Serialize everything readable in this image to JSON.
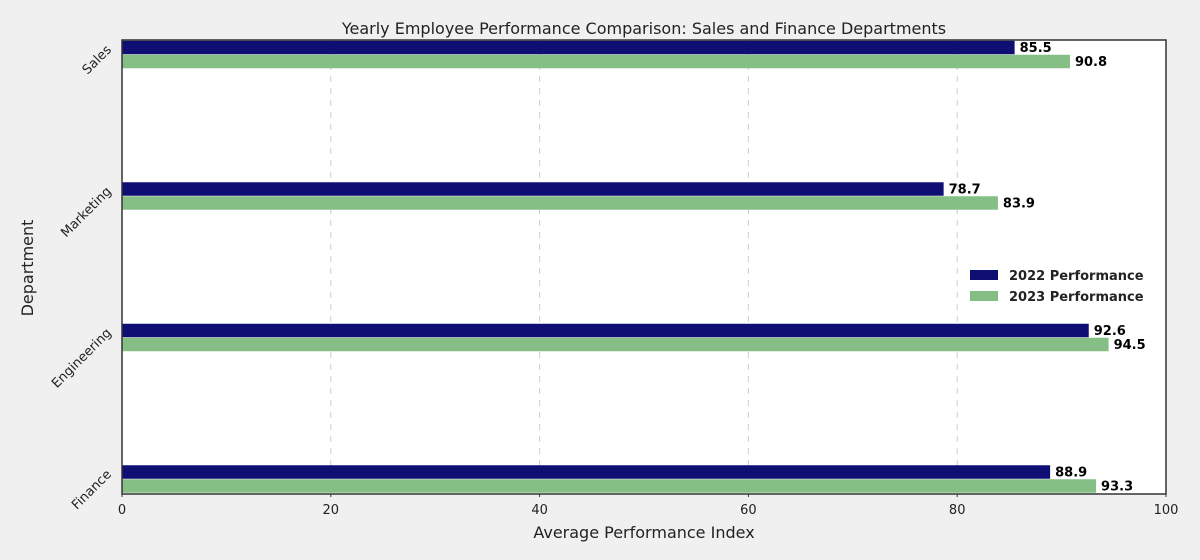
{
  "chart_data": {
    "type": "bar",
    "orientation": "horizontal",
    "title": "Yearly Employee Performance Comparison: Sales and Finance Departments",
    "xlabel": "Average Performance Index",
    "ylabel": "Department",
    "categories": [
      "Sales",
      "Marketing",
      "Engineering",
      "Finance"
    ],
    "series": [
      {
        "name": "2022 Performance",
        "values": [
          85.5,
          78.7,
          92.6,
          88.9
        ],
        "color": "#0f0f73"
      },
      {
        "name": "2023 Performance",
        "values": [
          90.8,
          83.9,
          94.5,
          93.3
        ],
        "color": "#85bf85"
      }
    ],
    "xlim": [
      0,
      100
    ],
    "xticks": [
      0,
      20,
      40,
      60,
      80,
      100
    ],
    "grid": "x-dashed",
    "legend_position": "center-right",
    "data_labels": true,
    "colors": {
      "background": "#f0f0f0",
      "plot_background": "#ffffff",
      "axis": "#333333",
      "grid": "#cccccc"
    }
  }
}
